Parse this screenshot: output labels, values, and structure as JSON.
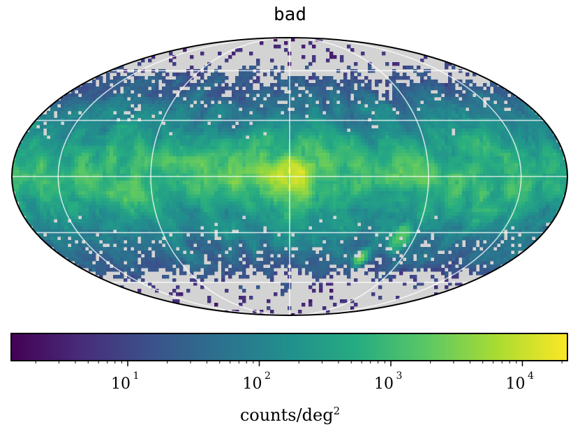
{
  "chart_data": {
    "type": "heatmap",
    "projection": "mollweide",
    "title": "bad",
    "scale": "log",
    "colormap": "viridis",
    "colormap_stops": [
      "#440154",
      "#472c7a",
      "#3b518b",
      "#2c718e",
      "#21908d",
      "#27ad81",
      "#5cc863",
      "#aadc32",
      "#fde725"
    ],
    "missing_color": "#d3d3d3",
    "grid": true,
    "colorbar": {
      "range": [
        1.3,
        22000
      ],
      "ticks": [
        {
          "value": 10,
          "base": "10",
          "exp": "1"
        },
        {
          "value": 100,
          "base": "10",
          "exp": "2"
        },
        {
          "value": 1000,
          "base": "10",
          "exp": "3"
        },
        {
          "value": 10000,
          "base": "10",
          "exp": "4"
        }
      ],
      "label_text": "counts/deg",
      "label_exp": "2"
    },
    "features": [
      {
        "name": "galactic plane",
        "peak": 20000,
        "lat_width": 10
      },
      {
        "name": "galactic center",
        "lon": 0,
        "lat": 0,
        "peak": 20000
      },
      {
        "name": "Large Magellanic Cloud",
        "lon": -80,
        "lat": -33,
        "peak": 3000
      },
      {
        "name": "Small Magellanic Cloud",
        "lon": -57,
        "lat": -44,
        "peak": 1500
      }
    ]
  }
}
